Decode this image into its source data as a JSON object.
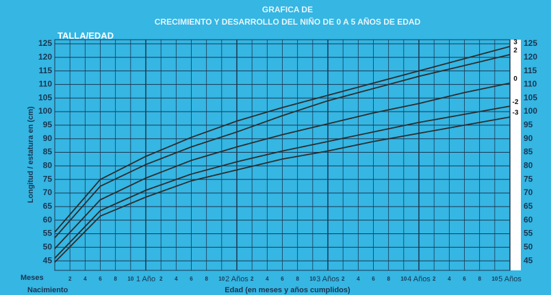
{
  "chart_data": {
    "type": "line",
    "title": "GRAFICA DE",
    "subtitle": "CRECIMIENTO Y DESARROLLO DEL NIÑO DE 0 A 5 AÑOS DE EDAD",
    "chart_label": "TALLA/EDAD",
    "ylabel": "Longitud / estatura en (cm)",
    "xlabel": "Edad (en meses y años cumplidos)",
    "x_row_label": "Meses",
    "x_start_label": "Nacimiento",
    "x": [
      0,
      6,
      12,
      18,
      24,
      30,
      36,
      42,
      48,
      54,
      60
    ],
    "series": [
      {
        "name": "3",
        "color": "#2b2b2b",
        "values": [
          55.6,
          75,
          83.5,
          90.5,
          96.5,
          101.5,
          106,
          110.5,
          115,
          119.5,
          124
        ]
      },
      {
        "name": "2",
        "color": "#2b2b2b",
        "values": [
          53.5,
          72.5,
          80.5,
          87,
          92.5,
          98.5,
          104,
          108.5,
          113,
          117,
          121
        ]
      },
      {
        "name": "0",
        "color": "#2b2b2b",
        "values": [
          49.5,
          67.5,
          75.5,
          82,
          87,
          91.5,
          95.5,
          99.5,
          103,
          107,
          110.5
        ]
      },
      {
        "name": "-2",
        "color": "#2b2b2b",
        "values": [
          46,
          63.5,
          71,
          77,
          81.5,
          85.5,
          89,
          92.5,
          96,
          99,
          102
        ]
      },
      {
        "name": "-3",
        "color": "#2b2b2b",
        "values": [
          44.5,
          61.5,
          68.5,
          74.5,
          78.5,
          82.5,
          85.5,
          89,
          92,
          95,
          98
        ]
      }
    ],
    "xlim": [
      0,
      60
    ],
    "xticks": [
      {
        "value": 2,
        "label": "2"
      },
      {
        "value": 4,
        "label": "4"
      },
      {
        "value": 6,
        "label": "6"
      },
      {
        "value": 8,
        "label": "8"
      },
      {
        "value": 10,
        "label": "10"
      },
      {
        "value": 12,
        "label": "1 Año"
      },
      {
        "value": 14,
        "label": "2"
      },
      {
        "value": 16,
        "label": "4"
      },
      {
        "value": 18,
        "label": "6"
      },
      {
        "value": 20,
        "label": "8"
      },
      {
        "value": 22,
        "label": "10"
      },
      {
        "value": 24,
        "label": "2 Años"
      },
      {
        "value": 26,
        "label": "2"
      },
      {
        "value": 28,
        "label": "4"
      },
      {
        "value": 30,
        "label": "6"
      },
      {
        "value": 32,
        "label": "8"
      },
      {
        "value": 34,
        "label": "10"
      },
      {
        "value": 36,
        "label": "3 Años"
      },
      {
        "value": 38,
        "label": "2"
      },
      {
        "value": 40,
        "label": "4"
      },
      {
        "value": 42,
        "label": "6"
      },
      {
        "value": 44,
        "label": "8"
      },
      {
        "value": 46,
        "label": "10"
      },
      {
        "value": 48,
        "label": "4 Años"
      },
      {
        "value": 50,
        "label": "2"
      },
      {
        "value": 52,
        "label": "4"
      },
      {
        "value": 54,
        "label": "6"
      },
      {
        "value": 56,
        "label": "8"
      },
      {
        "value": 58,
        "label": "10"
      },
      {
        "value": 60,
        "label": "5 Años"
      }
    ],
    "ylim": [
      41.5,
      126.5
    ],
    "yticks": [
      45,
      50,
      55,
      60,
      65,
      70,
      75,
      80,
      85,
      90,
      95,
      100,
      105,
      110,
      115,
      120,
      125
    ],
    "grid": true,
    "background": "#35b6e3"
  }
}
